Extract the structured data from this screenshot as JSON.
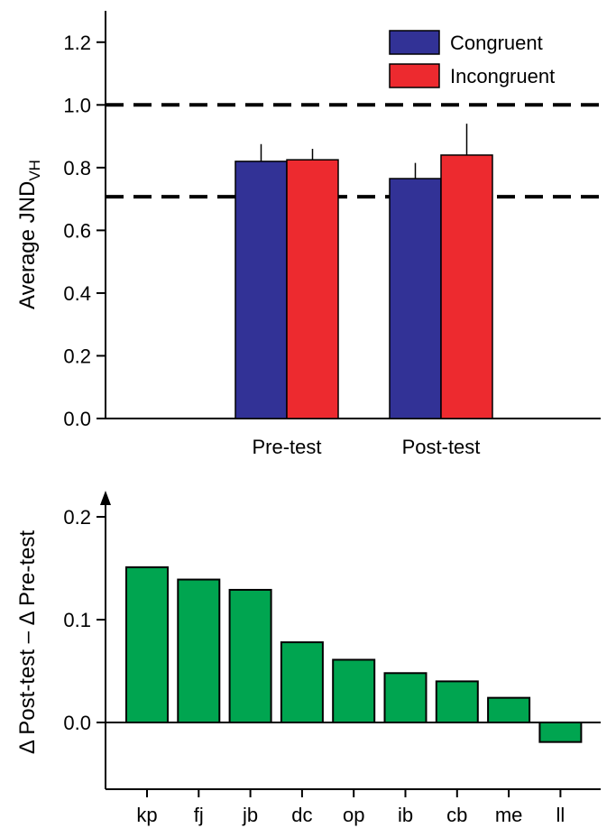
{
  "chart_data": [
    {
      "type": "bar",
      "title": "",
      "ylabel": "Average JND",
      "ylabel_subscript": "VH",
      "xlabel": "",
      "ylim": [
        0,
        1.3
      ],
      "yticks": [
        "0.0",
        "0.2",
        "0.4",
        "0.6",
        "0.8",
        "1.0",
        "1.2"
      ],
      "categories": [
        "Pre-test",
        "Post-test"
      ],
      "series": [
        {
          "name": "Congruent",
          "color": "#323296",
          "values": [
            0.82,
            0.765
          ],
          "errors": [
            0.055,
            0.05
          ]
        },
        {
          "name": "Incongruent",
          "color": "#ed2a2f",
          "values": [
            0.825,
            0.84
          ],
          "errors": [
            0.035,
            0.1
          ]
        }
      ],
      "reference_lines": [
        1.0,
        0.707
      ],
      "legend_position": "top-right"
    },
    {
      "type": "bar",
      "title": "",
      "ylabel": "Δ Post-test – Δ Pre-test",
      "xlabel": "",
      "ylim": [
        -0.07,
        0.22
      ],
      "yticks": [
        "0.0",
        "0.1",
        "0.2"
      ],
      "categories": [
        "kp",
        "fj",
        "jb",
        "dc",
        "op",
        "ib",
        "cb",
        "me",
        "ll"
      ],
      "values": [
        0.151,
        0.139,
        0.129,
        0.078,
        0.061,
        0.048,
        0.04,
        0.024,
        -0.019
      ],
      "color": "#00a550"
    }
  ]
}
